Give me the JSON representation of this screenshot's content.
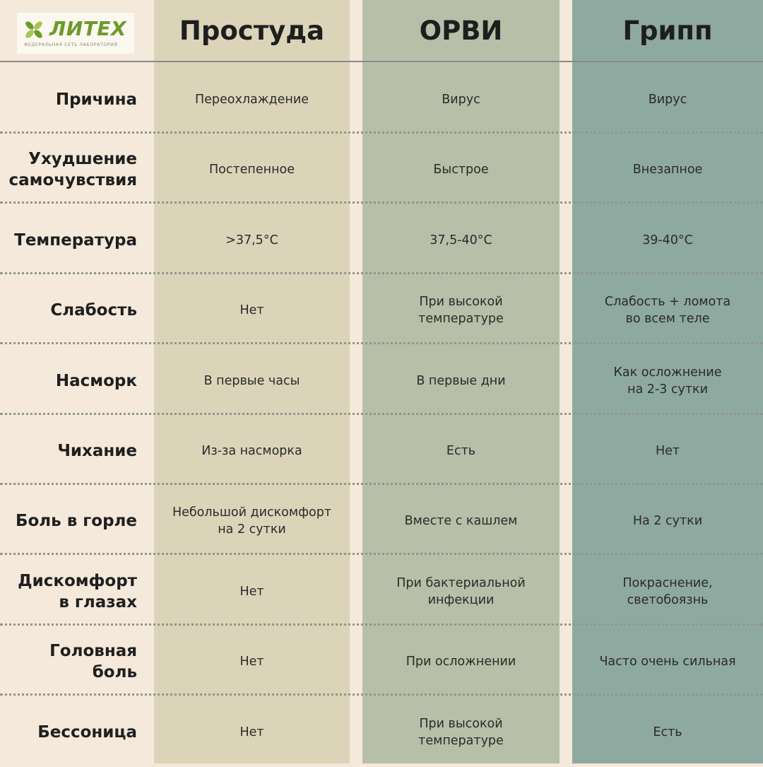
{
  "logo": {
    "name": "ЛИТЕХ",
    "tagline": "ФЕДЕРАЛЬНАЯ СЕТЬ ЛАБОРАТОРИЙ",
    "icon": "cross-leaf-icon",
    "color": "#6e9a2c"
  },
  "columns": [
    "Простуда",
    "ОРВИ",
    "Грипп"
  ],
  "column_colors": [
    "#dcd4b9",
    "#b7bfa8",
    "#8ea9a0"
  ],
  "rows": [
    {
      "label": "Причина",
      "values": [
        "Переохлаждение",
        "Вирус",
        "Вирус"
      ]
    },
    {
      "label": "Ухудшение\nсамочувствия",
      "values": [
        "Постепенное",
        "Быстрое",
        "Внезапное"
      ]
    },
    {
      "label": "Температура",
      "values": [
        ">37,5°С",
        "37,5-40°С",
        "39-40°С"
      ]
    },
    {
      "label": "Слабость",
      "values": [
        "Нет",
        "При высокой\nтемпературе",
        "Слабость + ломота\nво всем теле"
      ]
    },
    {
      "label": "Насморк",
      "values": [
        "В первые часы",
        "В первые дни",
        "Как осложнение\nна 2-3 сутки"
      ]
    },
    {
      "label": "Чихание",
      "values": [
        "Из-за насморка",
        "Есть",
        "Нет"
      ]
    },
    {
      "label": "Боль в горле",
      "values": [
        "Небольшой дискомфорт\nна 2 сутки",
        "Вместе с кашлем",
        "На 2 сутки"
      ]
    },
    {
      "label": "Дискомфорт\nв глазах",
      "values": [
        "Нет",
        "При бактериальной\nинфекции",
        "Покраснение,\nсветобоязнь"
      ]
    },
    {
      "label": "Головная боль",
      "values": [
        "Нет",
        "При осложнении",
        "Часто очень сильная"
      ]
    },
    {
      "label": "Бессоница",
      "values": [
        "Нет",
        "При высокой\nтемпературе",
        "Есть"
      ]
    }
  ]
}
